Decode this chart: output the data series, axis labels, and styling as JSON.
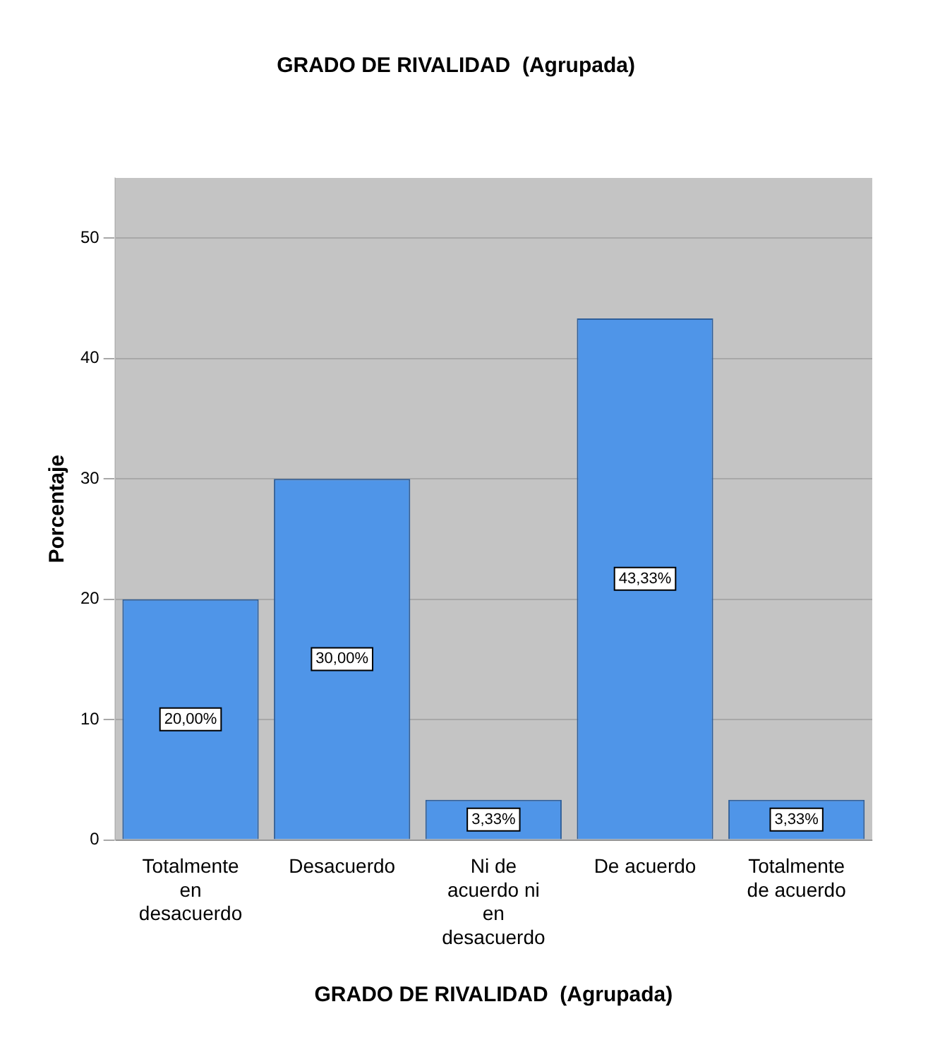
{
  "chart_data": {
    "type": "bar",
    "title": "GRADO DE RIVALIDAD  (Agrupada)",
    "xlabel": "GRADO DE RIVALIDAD  (Agrupada)",
    "ylabel": "Porcentaje",
    "categories": [
      "Totalmente en desacuerdo",
      "Desacuerdo",
      "Ni de acuerdo ni en desacuerdo",
      "De acuerdo",
      "Totalmente de acuerdo"
    ],
    "values": [
      20,
      30,
      3.33,
      43.33,
      3.33
    ],
    "value_labels": [
      "20,00%",
      "30,00%",
      "3,33%",
      "43,33%",
      "3,33%"
    ],
    "color": "#4f95e8",
    "ylim": [
      0,
      55
    ],
    "yticks": [
      0,
      10,
      20,
      30,
      40,
      50
    ],
    "grid": "y",
    "legend": false
  }
}
